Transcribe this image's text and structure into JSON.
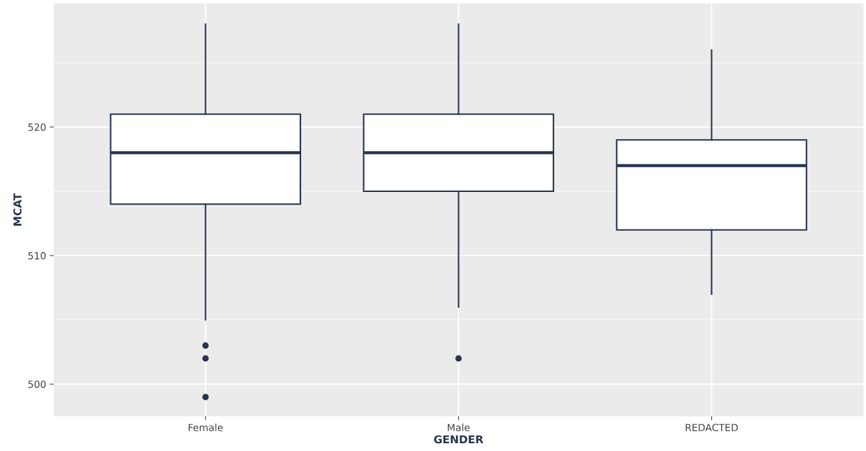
{
  "chart_data": {
    "type": "box",
    "xlabel": "GENDER",
    "ylabel": "MCAT",
    "categories": [
      "Female",
      "Male",
      "REDACTED"
    ],
    "boxes": [
      {
        "low": 505,
        "q1": 514,
        "median": 518,
        "q3": 521,
        "high": 528,
        "outliers": [
          503,
          502,
          499
        ]
      },
      {
        "low": 506,
        "q1": 515,
        "median": 518,
        "q3": 521,
        "high": 528,
        "outliers": [
          502
        ]
      },
      {
        "low": 507,
        "q1": 512,
        "median": 517,
        "q3": 519,
        "high": 526
      }
    ],
    "color": "#26354d",
    "ylim": [
      497.5,
      529.6
    ],
    "yticks": [
      500,
      {
        "value": 505,
        "label": null
      },
      510,
      {
        "value": 515,
        "label": null
      },
      520,
      {
        "value": 525,
        "label": null
      }
    ],
    "grid": true
  }
}
